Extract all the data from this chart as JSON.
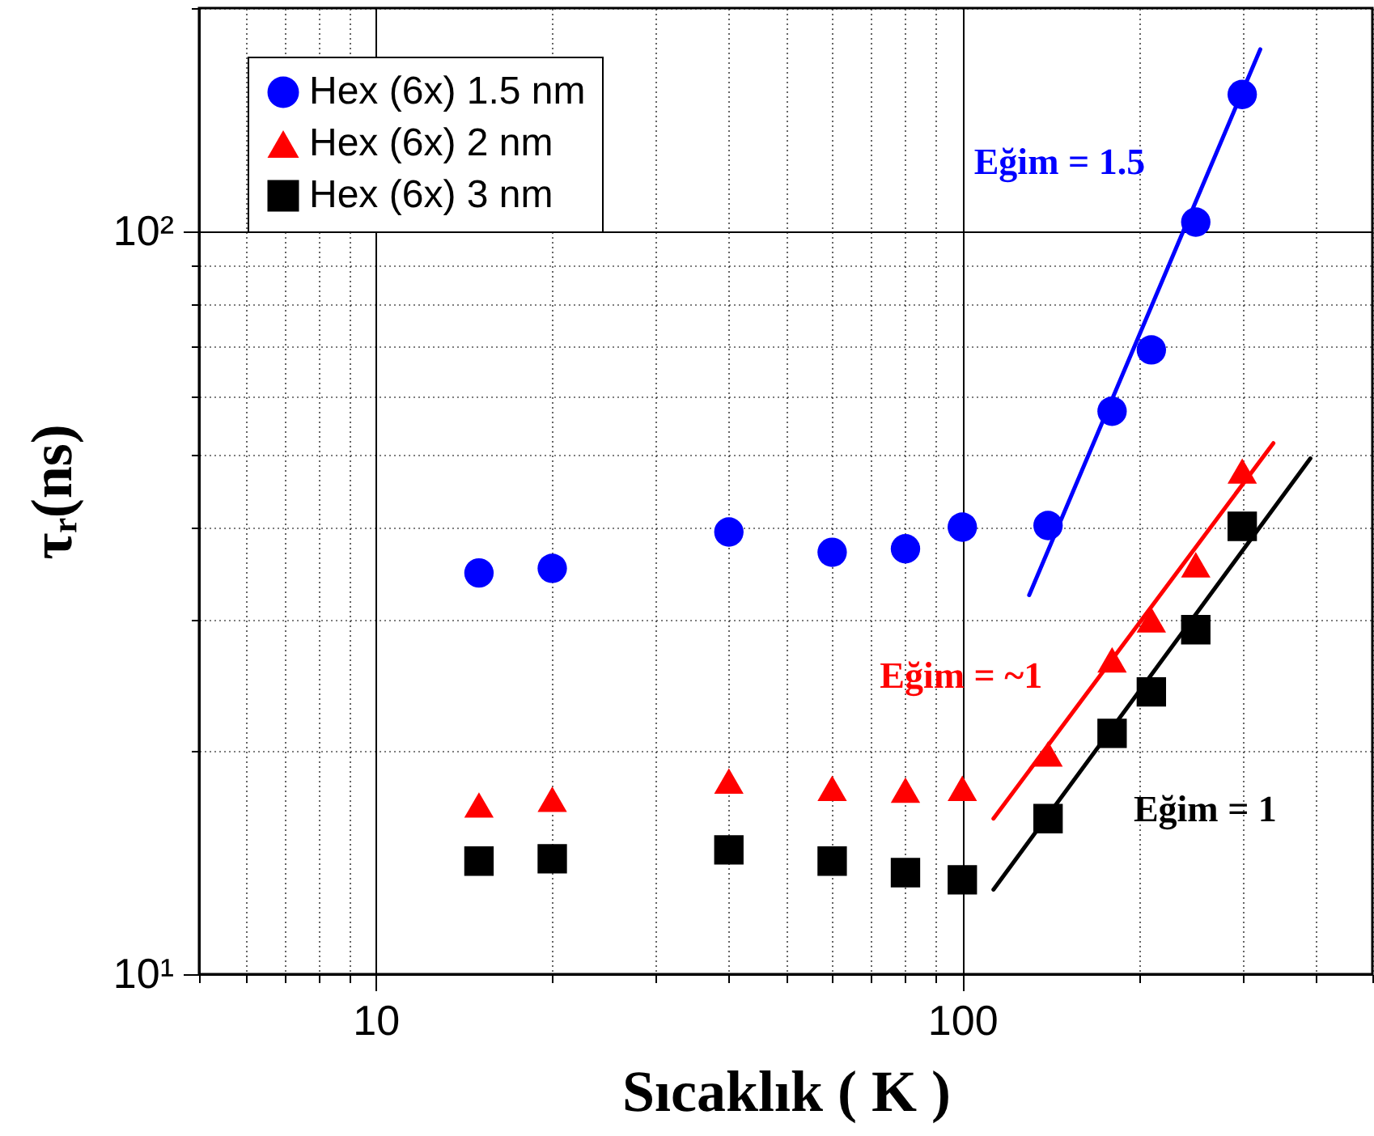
{
  "chart_data": {
    "type": "scatter",
    "xlabel": "Sıcaklık ( K )",
    "ylabel": "τᵣ(ns)",
    "log": "xy",
    "grid": true,
    "legend": "top left",
    "xlim": [
      5,
      500
    ],
    "ylim": [
      10,
      200
    ],
    "xticks": [
      {
        "value": 5,
        "label": null
      },
      {
        "value": 6,
        "label": null
      },
      {
        "value": 7,
        "label": null
      },
      {
        "value": 8,
        "label": null
      },
      {
        "value": 9,
        "label": null
      },
      10,
      {
        "value": 20,
        "label": null
      },
      {
        "value": 30,
        "label": null
      },
      {
        "value": 40,
        "label": null
      },
      {
        "value": 50,
        "label": null
      },
      {
        "value": 60,
        "label": null
      },
      {
        "value": 70,
        "label": null
      },
      {
        "value": 80,
        "label": null
      },
      {
        "value": 90,
        "label": null
      },
      100,
      {
        "value": 200,
        "label": null
      },
      {
        "value": 300,
        "label": null
      },
      {
        "value": 400,
        "label": null
      },
      {
        "value": 500,
        "label": null
      }
    ],
    "yticks": [
      {
        "value": 10,
        "label": "10¹"
      },
      {
        "value": 20,
        "label": null
      },
      {
        "value": 30,
        "label": null
      },
      {
        "value": 40,
        "label": null
      },
      {
        "value": 50,
        "label": null
      },
      {
        "value": 60,
        "label": null
      },
      {
        "value": 70,
        "label": null
      },
      {
        "value": 80,
        "label": null
      },
      {
        "value": 90,
        "label": null
      },
      {
        "value": 100,
        "label": "10²"
      },
      {
        "value": 200,
        "label": null
      }
    ],
    "series": [
      {
        "name": "Hex (6x) 1.5 nm",
        "marker": "circle",
        "color": "#0000ff",
        "x": [
          15,
          20,
          40,
          60,
          80,
          100,
          140,
          180,
          210,
          250,
          300
        ],
        "values": [
          34.7,
          35.2,
          39.4,
          37.0,
          37.4,
          40.0,
          40.2,
          57.3,
          69.3,
          103,
          153
        ]
      },
      {
        "name": "Hex (6x) 2 nm",
        "marker": "triangle",
        "color": "#ff0000",
        "x": [
          15,
          20,
          40,
          60,
          80,
          100,
          140,
          180,
          210,
          250,
          300
        ],
        "values": [
          16.9,
          17.2,
          18.2,
          17.8,
          17.7,
          17.8,
          19.8,
          26.5,
          30.0,
          35.6,
          47.6
        ]
      },
      {
        "name": "Hex (6x) 3 nm",
        "marker": "square",
        "color": "#000000",
        "x": [
          15,
          20,
          40,
          60,
          80,
          100,
          140,
          180,
          210,
          250,
          300
        ],
        "values": [
          14.2,
          14.3,
          14.7,
          14.2,
          13.7,
          13.4,
          16.2,
          21.1,
          24.0,
          29.1,
          40.1
        ]
      },
      {
        "type": "line",
        "color": "#0000ff",
        "x": [
          130,
          322
        ],
        "values": [
          32.4,
          176
        ]
      },
      {
        "type": "line",
        "color": "#ff0000",
        "x": [
          113,
          339
        ],
        "values": [
          16.2,
          51.9
        ]
      },
      {
        "type": "line",
        "color": "#000000",
        "x": [
          113,
          392
        ],
        "values": [
          13.0,
          49.5
        ]
      }
    ],
    "annotations": [
      "Eğim = 1.5",
      "Eğim = ~1",
      "Eğim = 1"
    ]
  }
}
